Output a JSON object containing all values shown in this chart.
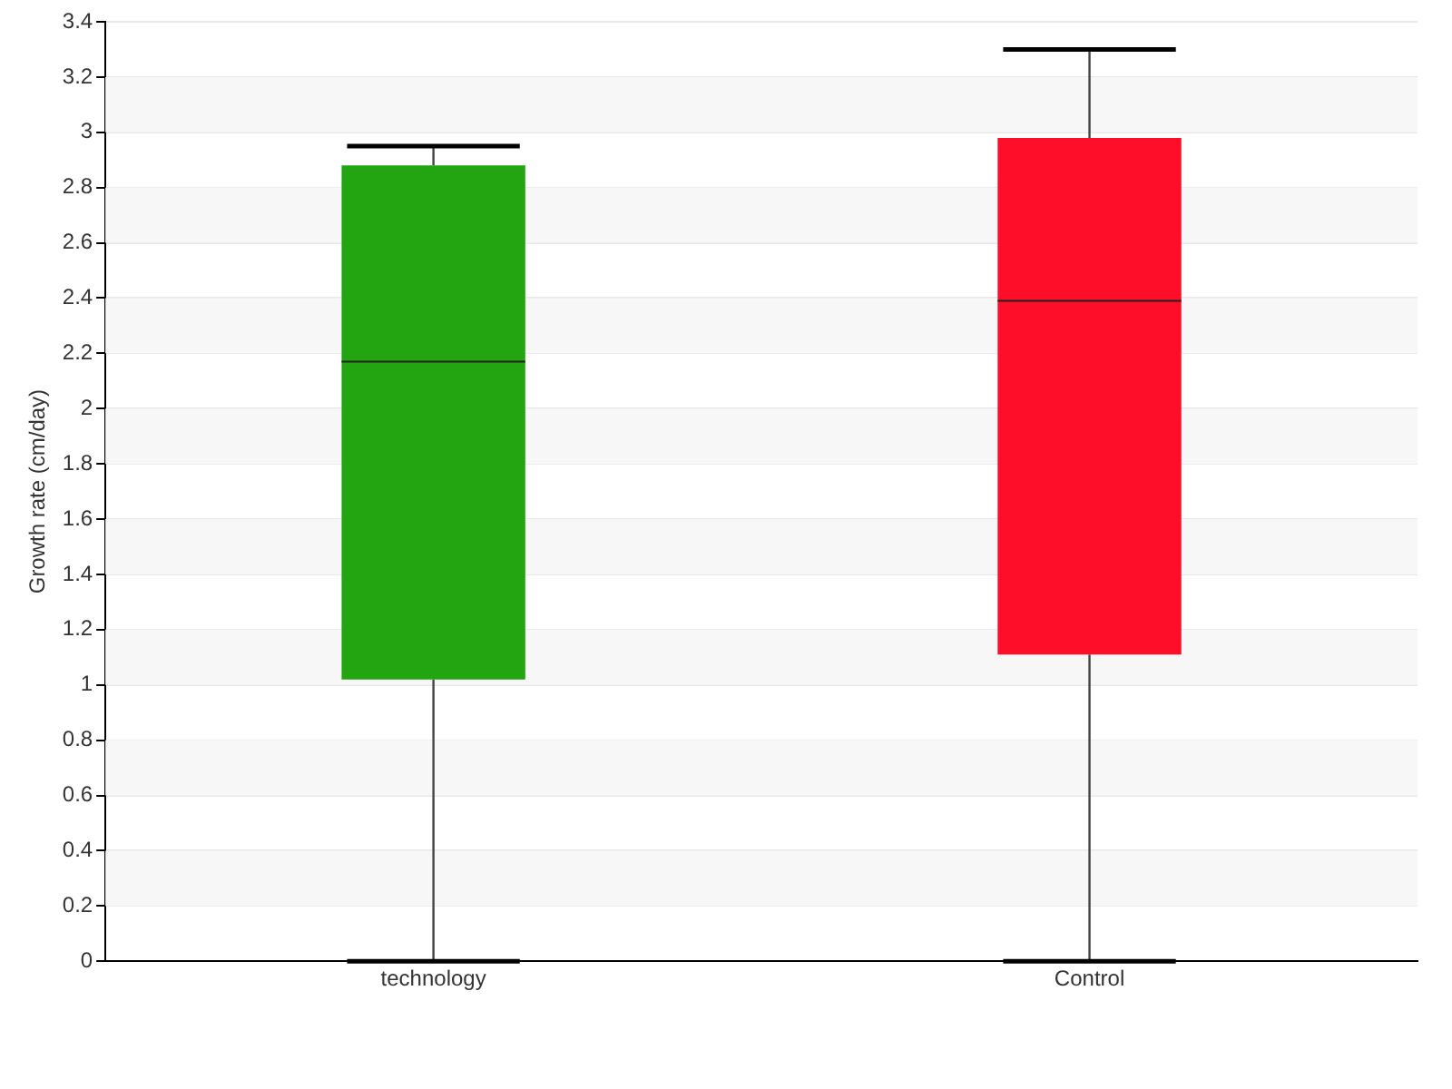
{
  "chart_data": {
    "type": "box",
    "ylabel": "Growth rate (cm/day)",
    "categories": [
      "technology",
      "Control"
    ],
    "colors": [
      "#22a511",
      "#ff0e29"
    ],
    "boxes": [
      {
        "low": 0,
        "q1": 1.02,
        "median": 2.17,
        "q3": 2.88,
        "high": 2.95
      },
      {
        "low": 0,
        "q1": 1.11,
        "median": 2.39,
        "q3": 2.98,
        "high": 3.3
      }
    ],
    "ylim": [
      0,
      3.4
    ],
    "yticks": [
      0,
      0.2,
      0.4,
      0.6,
      0.8,
      1,
      1.2,
      1.4,
      1.6,
      1.8,
      2,
      2.2,
      2.4,
      2.6,
      2.8,
      3,
      3.2,
      3.4
    ],
    "grid": "y"
  }
}
